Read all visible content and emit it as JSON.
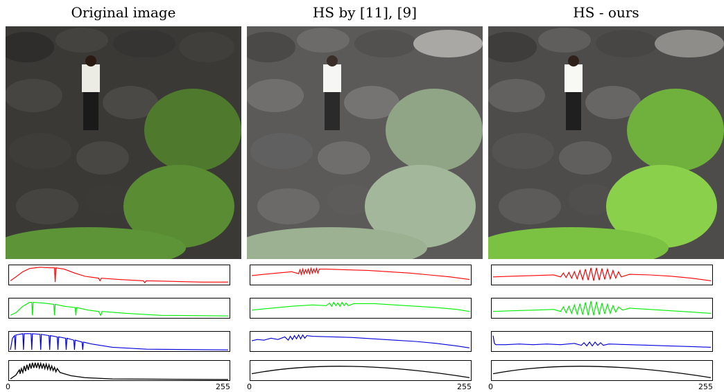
{
  "panels": [
    {
      "title": "Original image",
      "x_min": "0",
      "x_max": "255"
    },
    {
      "title": "HS by  [11], [9]",
      "x_min": "0",
      "x_max": "255"
    },
    {
      "title": "HS - ours",
      "x_min": "0",
      "x_max": "255"
    }
  ],
  "colors": {
    "red": "#ff0000",
    "green": "#00ee00",
    "blue": "#0000dd",
    "black": "#000000"
  },
  "chart_data": [
    {
      "type": "line",
      "panel": "Original image",
      "channel": "red",
      "xlim": [
        0,
        255
      ],
      "shape": "peak-left-spiky"
    },
    {
      "type": "line",
      "panel": "Original image",
      "channel": "green",
      "xlim": [
        0,
        255
      ],
      "shape": "peak-left-spiky"
    },
    {
      "type": "line",
      "panel": "Original image",
      "channel": "blue",
      "xlim": [
        0,
        255
      ],
      "shape": "peak-left-comb"
    },
    {
      "type": "line",
      "panel": "Original image",
      "channel": "gray",
      "xlim": [
        0,
        255
      ],
      "shape": "peak-left-comb"
    },
    {
      "type": "line",
      "panel": "HS by  [11], [9]",
      "channel": "red",
      "xlim": [
        0,
        255
      ],
      "shape": "broad-noisy"
    },
    {
      "type": "line",
      "panel": "HS by  [11], [9]",
      "channel": "green",
      "xlim": [
        0,
        255
      ],
      "shape": "broad-noisy"
    },
    {
      "type": "line",
      "panel": "HS by  [11], [9]",
      "channel": "blue",
      "xlim": [
        0,
        255
      ],
      "shape": "broad-noisy"
    },
    {
      "type": "line",
      "panel": "HS by  [11], [9]",
      "channel": "gray",
      "xlim": [
        0,
        255
      ],
      "shape": "smooth-arc"
    },
    {
      "type": "line",
      "panel": "HS - ours",
      "channel": "red",
      "xlim": [
        0,
        255
      ],
      "shape": "flat-spiky-center"
    },
    {
      "type": "line",
      "panel": "HS - ours",
      "channel": "green",
      "xlim": [
        0,
        255
      ],
      "shape": "flat-spiky-center"
    },
    {
      "type": "line",
      "panel": "HS - ours",
      "channel": "blue",
      "xlim": [
        0,
        255
      ],
      "shape": "flat-noisy"
    },
    {
      "type": "line",
      "panel": "HS - ours",
      "channel": "gray",
      "xlim": [
        0,
        255
      ],
      "shape": "smooth-arc"
    }
  ]
}
